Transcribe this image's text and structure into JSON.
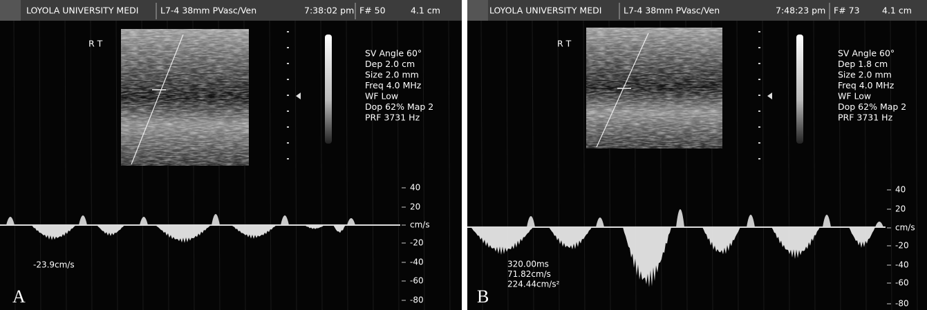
{
  "panels": [
    {
      "header": {
        "institution": "LOYOLA UNIVERSITY MEDI",
        "probe": "L7-4 38mm PVasc/Ven",
        "time": "7:38:02 pm",
        "frame": "F# 50",
        "depth": "4.1 cm"
      },
      "side": "R T",
      "settings": [
        "SV Angle 60°",
        "Dep 2.0  cm",
        "Size 2.0  mm",
        "Freq 4.0  MHz",
        "WF Low",
        "Dop 62%  Map 2",
        "PRF 3731  Hz"
      ],
      "scale": [
        "40",
        "20",
        "cm/s",
        "-20",
        "-40",
        "-60",
        "-80"
      ],
      "measurements": [
        "-23.9cm/s"
      ],
      "label": "A"
    },
    {
      "header": {
        "institution": "LOYOLA UNIVERSITY MEDI",
        "probe": "L7-4 38mm PVasc/Ven",
        "time": "7:48:23 pm",
        "frame": "F# 73",
        "depth": "4.1 cm"
      },
      "side": "R T",
      "settings": [
        "SV Angle 60°",
        "Dep 1.8  cm",
        "Size 2.0  mm",
        "Freq 4.0  MHz",
        "WF Low",
        "Dop 62%  Map 2",
        "PRF 3731  Hz"
      ],
      "scale": [
        "40",
        "20",
        "cm/s",
        "-20",
        "-40",
        "-60",
        "-80"
      ],
      "measurements": [
        "320.00ms",
        "71.82cm/s",
        "224.44cm/s²"
      ],
      "label": "B"
    }
  ]
}
